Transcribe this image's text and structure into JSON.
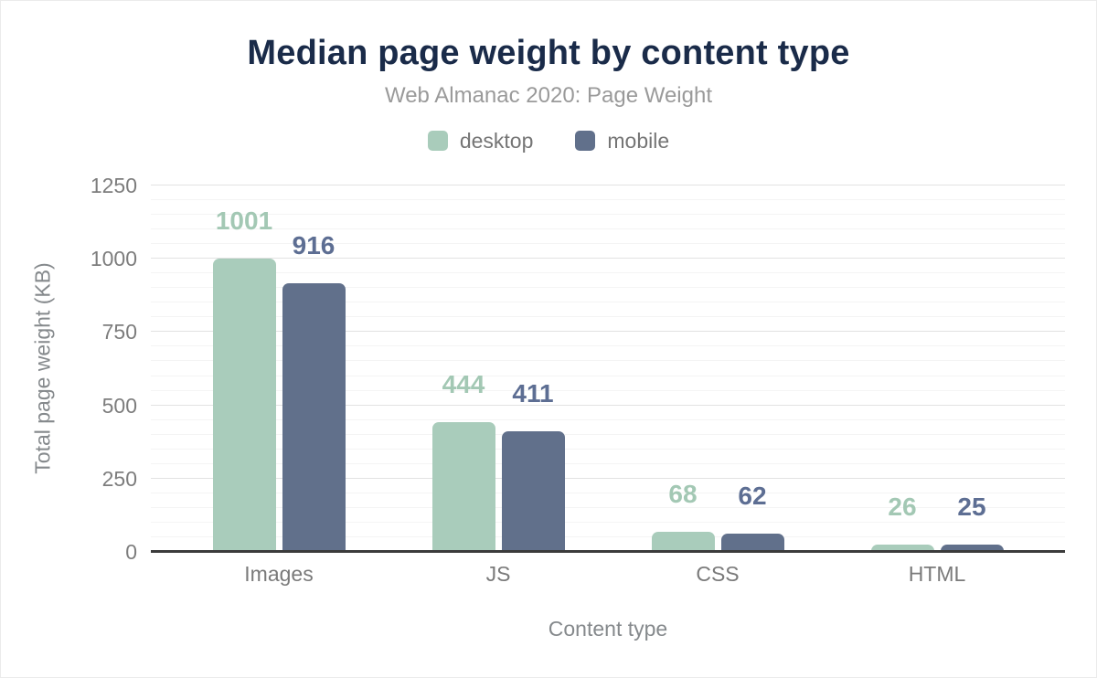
{
  "header": {
    "title": "Median page weight by content type",
    "subtitle": "Web Almanac 2020: Page Weight"
  },
  "chart_data": {
    "type": "bar",
    "title": "Median page weight by content type",
    "subtitle": "Web Almanac 2020: Page Weight",
    "categories": [
      "Images",
      "JS",
      "CSS",
      "HTML"
    ],
    "series": [
      {
        "name": "desktop",
        "color": "#a9ccbb",
        "label_color": "#a3c8b4",
        "values": [
          1001,
          444,
          68,
          26
        ]
      },
      {
        "name": "mobile",
        "color": "#61708b",
        "label_color": "#5d6e93",
        "values": [
          916,
          411,
          62,
          25
        ]
      }
    ],
    "xlabel": "Content type",
    "ylabel": "Total page weight (KB)",
    "ylim": [
      0,
      1250
    ],
    "yticks": [
      0,
      250,
      500,
      750,
      1000,
      1250
    ],
    "grid": {
      "minor_step": 50,
      "major_step": 250,
      "minor_color": "#f4f4f4",
      "major_color": "#e2e2e2"
    },
    "legend_position": "top",
    "value_labels": true
  },
  "colors": {
    "title": "#1a2b49",
    "subtitle": "#9a9a9a",
    "tick_text": "#7d7d7d",
    "category_text": "#7a7a7a",
    "axis_title_text": "#85898c",
    "legend_text": "#757575",
    "baseline": "#3b3b3b",
    "background": "#ffffff"
  }
}
